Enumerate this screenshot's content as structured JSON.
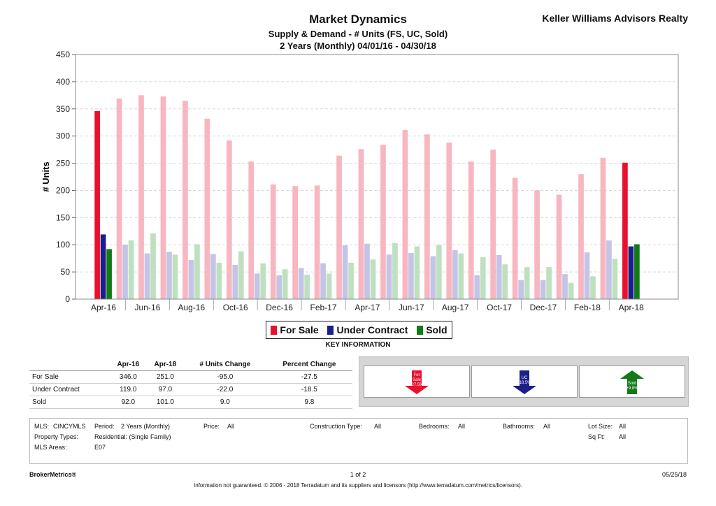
{
  "header": {
    "title": "Market Dynamics",
    "subtitle1": "Supply & Demand - # Units (FS, UC, Sold)",
    "subtitle2": "2 Years (Monthly) 04/01/16 - 04/30/18",
    "brand": "Keller Williams Advisors Realty"
  },
  "chart_data": {
    "type": "bar",
    "ylabel": "# Units",
    "ylim": [
      0,
      450
    ],
    "yticks": [
      0,
      50,
      100,
      150,
      200,
      250,
      300,
      350,
      400,
      450
    ],
    "grid": true,
    "legend_position": "bottom-center",
    "categories": [
      "Apr-16",
      "May-16",
      "Jun-16",
      "Jul-16",
      "Aug-16",
      "Sep-16",
      "Oct-16",
      "Nov-16",
      "Dec-16",
      "Jan-17",
      "Feb-17",
      "Mar-17",
      "Apr-17",
      "May-17",
      "Jun-17",
      "Jul-17",
      "Aug-17",
      "Sep-17",
      "Oct-17",
      "Nov-17",
      "Dec-17",
      "Jan-18",
      "Feb-18",
      "Mar-18",
      "Apr-18"
    ],
    "xtick_labels": [
      "Apr-16",
      "Jun-16",
      "Aug-16",
      "Oct-16",
      "Dec-16",
      "Feb-17",
      "Apr-17",
      "Jun-17",
      "Aug-17",
      "Oct-17",
      "Dec-17",
      "Feb-18",
      "Apr-18"
    ],
    "highlighted_categories": [
      "Apr-16",
      "Apr-18"
    ],
    "series": [
      {
        "name": "For Sale",
        "color": "#e8112d",
        "faded_color": "#f7b6c0",
        "values": [
          346,
          369,
          375,
          373,
          365,
          332,
          292,
          253,
          211,
          208,
          209,
          264,
          276,
          284,
          311,
          303,
          288,
          253,
          275,
          223,
          200,
          192,
          230,
          260,
          251
        ]
      },
      {
        "name": "Under Contract",
        "color": "#1b1f8a",
        "faded_color": "#c4c4e6",
        "values": [
          119,
          100,
          84,
          87,
          72,
          83,
          63,
          47,
          44,
          57,
          66,
          99,
          102,
          82,
          85,
          79,
          90,
          44,
          81,
          35,
          35,
          46,
          86,
          108,
          97
        ]
      },
      {
        "name": "Sold",
        "color": "#137a1b",
        "faded_color": "#bfe0bf",
        "values": [
          92,
          108,
          121,
          82,
          101,
          67,
          88,
          66,
          55,
          45,
          47,
          67,
          73,
          103,
          97,
          100,
          84,
          77,
          64,
          59,
          59,
          30,
          42,
          74,
          101
        ]
      }
    ]
  },
  "key_info": {
    "label": "KEY INFORMATION",
    "columns": [
      "",
      "Apr-16",
      "Apr-18",
      "# Units Change",
      "Percent Change"
    ],
    "rows": [
      {
        "label": "For Sale",
        "a": "346.0",
        "b": "251.0",
        "change": "-95.0",
        "pct": "-27.5"
      },
      {
        "label": "Under Contract",
        "a": "119.0",
        "b": "97.0",
        "change": "-22.0",
        "pct": "-18.5"
      },
      {
        "label": "Sold",
        "a": "92.0",
        "b": "101.0",
        "change": "9.0",
        "pct": "9.8"
      }
    ],
    "arrows": [
      {
        "name": "For Sale",
        "line1": "For",
        "line2": "Sale",
        "pct": "-27.5%",
        "direction": "down",
        "color": "#e8112d"
      },
      {
        "name": "UC",
        "line1": "UC",
        "line2": "",
        "pct": "-18.5%",
        "direction": "down",
        "color": "#1b1f8a"
      },
      {
        "name": "Sold",
        "line1": "Sold",
        "line2": "",
        "pct": "+9.8%",
        "direction": "up",
        "color": "#137a1b"
      }
    ]
  },
  "filters": {
    "mls_label": "MLS:",
    "mls_value": "CINCYMLS",
    "period_label": "Period:",
    "period_value": "2 Years (Monthly)",
    "price_label": "Price:",
    "price_value": "All",
    "construction_label": "Construction Type:",
    "construction_value": "All",
    "bedrooms_label": "Bedrooms:",
    "bedrooms_value": "All",
    "bathrooms_label": "Bathrooms:",
    "bathrooms_value": "All",
    "lot_label": "Lot Size:",
    "lot_value": "All",
    "prop_label": "Property Types:",
    "prop_value": "Residential: (Single Family)",
    "sqft_label": "Sq Ft:",
    "sqft_value": "All",
    "areas_label": "MLS Areas:",
    "areas_value": "E07"
  },
  "footer": {
    "brand": "BrokerMetrics®",
    "page": "1 of 2",
    "date": "05/25/18",
    "disclaimer": "Information not guaranteed.  © 2006 - 2018 Terradatum and its suppliers and licensors (http://www.terradatum.com/metrics/licensors)."
  }
}
